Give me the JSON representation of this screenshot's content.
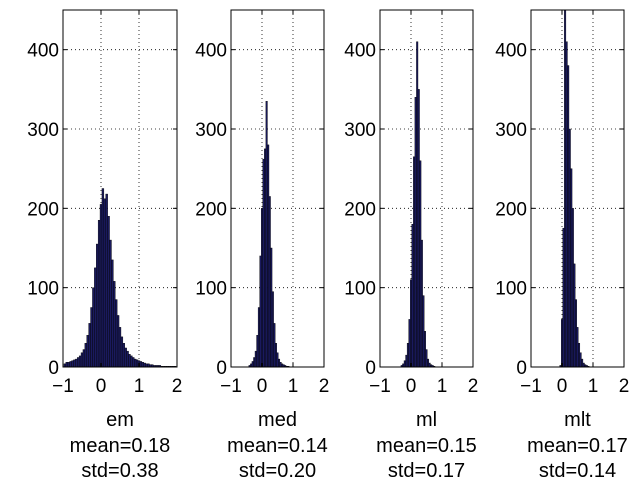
{
  "chart_data": [
    {
      "type": "bar",
      "xlabel": "em",
      "stats": [
        "mean=0.18",
        "std=0.38"
      ],
      "xlim": [
        -1,
        2
      ],
      "ylim": [
        0,
        450
      ],
      "xticks": [
        "−1",
        "0",
        "1",
        "2"
      ],
      "yticks": [
        "0",
        "100",
        "200",
        "300",
        "400"
      ],
      "grid": true,
      "bin_width": 0.05,
      "bin_start": -0.95,
      "values": [
        4,
        6,
        6,
        7,
        8,
        9,
        10,
        12,
        14,
        18,
        22,
        30,
        40,
        55,
        75,
        100,
        125,
        155,
        185,
        205,
        225,
        212,
        218,
        190,
        160,
        135,
        108,
        85,
        65,
        50,
        38,
        30,
        24,
        20,
        16,
        14,
        12,
        10,
        9,
        8,
        7,
        6,
        5,
        4,
        4,
        3,
        3,
        2,
        2,
        2,
        2,
        1,
        1,
        1,
        1,
        1,
        1,
        1,
        1
      ]
    },
    {
      "type": "bar",
      "xlabel": "med",
      "stats": [
        "mean=0.14",
        "std=0.20"
      ],
      "xlim": [
        -1,
        2
      ],
      "ylim": [
        0,
        450
      ],
      "xticks": [
        "−1",
        "0",
        "1",
        "2"
      ],
      "yticks": [
        "0",
        "100",
        "200",
        "300",
        "400"
      ],
      "grid": true,
      "bin_width": 0.05,
      "bin_start": -0.4,
      "values": [
        2,
        4,
        7,
        12,
        20,
        40,
        75,
        140,
        200,
        262,
        275,
        335,
        280,
        215,
        150,
        95,
        55,
        30,
        18,
        10,
        6,
        4,
        3,
        2,
        1,
        1
      ]
    },
    {
      "type": "bar",
      "xlabel": "ml",
      "stats": [
        "mean=0.15",
        "std=0.17"
      ],
      "xlim": [
        -1,
        2
      ],
      "ylim": [
        0,
        450
      ],
      "xticks": [
        "−1",
        "0",
        "1",
        "2"
      ],
      "yticks": [
        "0",
        "100",
        "200",
        "300",
        "400"
      ],
      "grid": true,
      "bin_width": 0.05,
      "bin_start": -0.3,
      "values": [
        2,
        4,
        8,
        15,
        30,
        60,
        110,
        180,
        265,
        340,
        410,
        350,
        260,
        160,
        90,
        45,
        22,
        10,
        5,
        3,
        2,
        1
      ]
    },
    {
      "type": "bar",
      "xlabel": "mlt",
      "stats": [
        "mean=0.17",
        "std=0.14"
      ],
      "xlim": [
        -1,
        2
      ],
      "ylim": [
        0,
        450
      ],
      "xticks": [
        "−1",
        "0",
        "1",
        "2"
      ],
      "yticks": [
        "0",
        "100",
        "200",
        "300",
        "400"
      ],
      "grid": true,
      "bin_width": 0.05,
      "bin_start": -0.05,
      "values": [
        2,
        60,
        175,
        450,
        410,
        380,
        300,
        250,
        200,
        130,
        85,
        50,
        30,
        18,
        10,
        5,
        3,
        2,
        1
      ]
    }
  ]
}
